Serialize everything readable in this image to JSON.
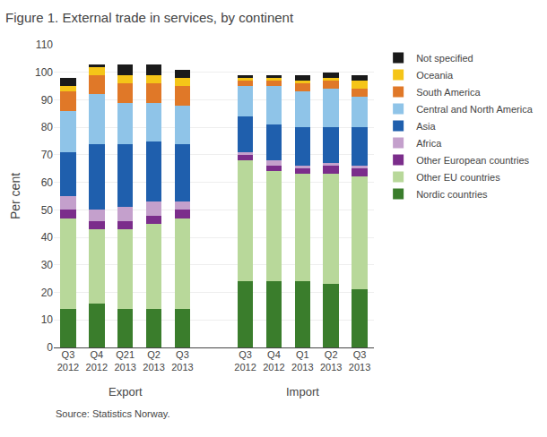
{
  "chart_data": {
    "type": "bar",
    "stacked": true,
    "title": "Figure 1. External trade in services, by continent",
    "ylabel": "Per cent",
    "source": "Source: Statistics Norway.",
    "groups": [
      {
        "label": "Export",
        "categories": [
          "Q3\n2012",
          "Q4\n2012",
          "Q21\n2013",
          "Q2\n2013",
          "Q3\n2013"
        ]
      },
      {
        "label": "Import",
        "categories": [
          "Q3\n2012",
          "Q4\n2012",
          "Q1\n2013",
          "Q2\n2013",
          "Q3\n2013"
        ]
      }
    ],
    "series": [
      {
        "name": "Nordic countries",
        "color": "#3a7d2c",
        "values": [
          14,
          16,
          14,
          14,
          14,
          24,
          24,
          24,
          23,
          21
        ]
      },
      {
        "name": "Other EU countries",
        "color": "#b8d89a",
        "values": [
          33,
          27,
          29,
          31,
          33,
          44,
          40,
          39,
          40,
          41
        ]
      },
      {
        "name": "Other European countries",
        "color": "#7b2d8b",
        "values": [
          3,
          3,
          3,
          3,
          3,
          2,
          2,
          2,
          3,
          3
        ]
      },
      {
        "name": "Africa",
        "color": "#c4a0cc",
        "values": [
          5,
          4,
          5,
          5,
          3,
          1,
          2,
          1,
          1,
          1
        ]
      },
      {
        "name": "Asia",
        "color": "#1f5fad",
        "values": [
          16,
          24,
          23,
          22,
          21,
          13,
          13,
          14,
          13,
          14
        ]
      },
      {
        "name": "Central and North America",
        "color": "#8fc4e8",
        "values": [
          15,
          18,
          15,
          14,
          14,
          11,
          14,
          13,
          14,
          11
        ]
      },
      {
        "name": "South America",
        "color": "#e07828",
        "values": [
          7,
          7,
          7,
          7,
          7,
          2,
          2,
          3,
          3,
          3
        ]
      },
      {
        "name": "Oceania",
        "color": "#f5c518",
        "values": [
          2,
          3,
          3,
          3,
          3,
          1,
          1,
          1,
          1,
          3
        ]
      },
      {
        "name": "Not specified",
        "color": "#1a1a1a",
        "values": [
          3,
          1,
          4,
          4,
          3,
          1,
          1,
          2,
          2,
          2
        ]
      }
    ],
    "ylim": [
      0,
      110
    ],
    "yticks": [
      0,
      10,
      20,
      30,
      40,
      50,
      60,
      70,
      80,
      90,
      100,
      110
    ],
    "grid": true,
    "legend": "right"
  }
}
